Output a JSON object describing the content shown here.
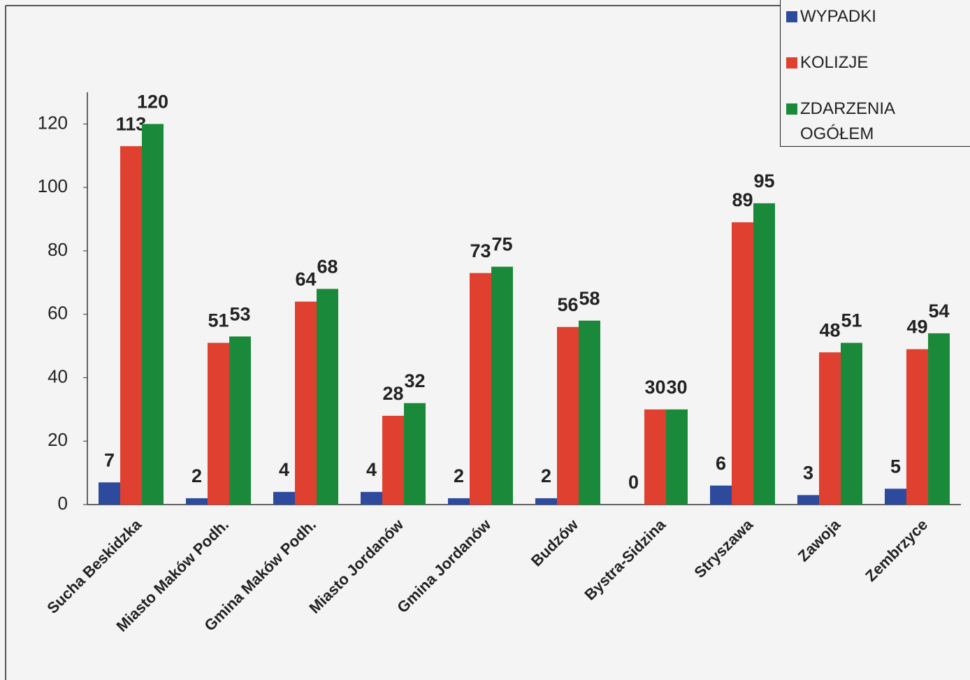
{
  "chart_data": {
    "type": "bar",
    "categories": [
      "Sucha Beskidzka",
      "Miasto Maków Podh.",
      "Gmina Maków Podh.",
      "Miasto Jordanów",
      "Gmina Jordanów",
      "Budzów",
      "Bystra-Sidzina",
      "Stryszawa",
      "Zawoja",
      "Zembrzyce"
    ],
    "series": [
      {
        "name": "WYPADKI",
        "color": "#2e4a9c",
        "values": [
          7,
          2,
          4,
          4,
          2,
          2,
          0,
          6,
          3,
          5
        ]
      },
      {
        "name": "KOLIZJE",
        "color": "#e04030",
        "values": [
          113,
          51,
          64,
          28,
          73,
          56,
          30,
          89,
          48,
          49
        ]
      },
      {
        "name": "ZDARZENIA OGÓŁEM",
        "color": "#1a8a3a",
        "values": [
          120,
          53,
          68,
          32,
          75,
          58,
          30,
          95,
          51,
          54
        ]
      }
    ],
    "ylim": [
      0,
      130
    ],
    "yticks": [
      0,
      20,
      40,
      60,
      80,
      100,
      120
    ],
    "legend": "top-right"
  }
}
